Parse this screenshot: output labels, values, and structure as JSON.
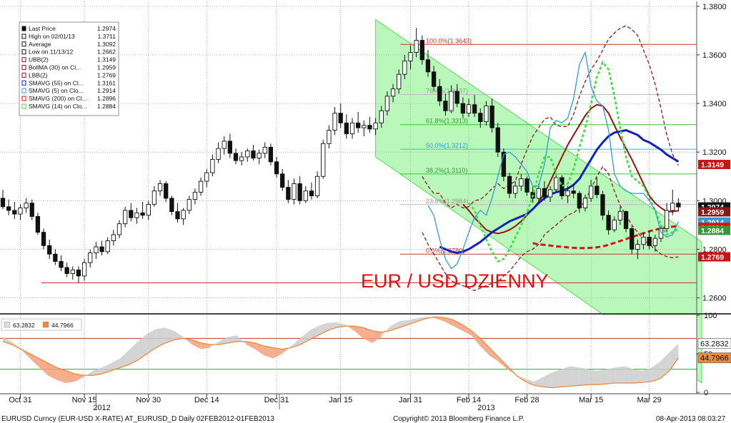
{
  "chart_data": {
    "type": "candlestick",
    "title": "EUR / USD DZIENNY",
    "colors": {
      "bull": "#ffffff",
      "bear": "#111111",
      "sma5": "#3399dd",
      "sma14": "#44dd44",
      "sma55": "#1122bb",
      "sma200": "#dd1111",
      "bb_band": "#8a1a1a",
      "boll_ma": "#991111",
      "channel": "#66ee66",
      "rsi_fill": "#f3a07a",
      "rsi_line": "#f08a3a",
      "overbought_fill": "#cccccc"
    },
    "price_axis": {
      "ylim": [
        1.254,
        1.382
      ],
      "ticks": [
        "1.3800",
        "1.3600",
        "1.3400",
        "1.3200",
        "1.3000",
        "1.2800",
        "1.2600"
      ],
      "side": "right"
    },
    "x_axis": {
      "tick_labels": [
        "Oct 31",
        "Nov 15",
        "Nov 30",
        "Dec 14",
        "Dec 31",
        "Jan 15",
        "Jan 31",
        "Feb 14",
        "Feb 28",
        "Mar 15",
        "Mar 29"
      ],
      "tick_index": [
        3,
        14,
        25,
        35,
        47,
        58,
        70,
        80,
        90,
        101,
        111
      ],
      "year_labels": [
        "2012",
        "2013"
      ],
      "year_index": [
        17,
        83
      ]
    },
    "legend": {
      "placement": "top-left",
      "items": [
        {
          "label": "Last Price",
          "value": "1.2974"
        },
        {
          "label": "High on 02/01/13",
          "value": "1.3711"
        },
        {
          "label": "Average",
          "value": "1.3092"
        },
        {
          "label": "Low on 11/13/12",
          "value": "1.2662"
        },
        {
          "label": "UBB(2)",
          "value": "1.3149"
        },
        {
          "label": "BollMA (30) on Cl...",
          "value": "1.2959"
        },
        {
          "label": "LBB(2)",
          "value": "1.2769"
        },
        {
          "label": "SMAVG (55) on Cl...",
          "value": "1.3161"
        },
        {
          "label": "SMAVG (5) on Clo...",
          "value": "1.2914"
        },
        {
          "label": "SMAVG (200) on Cl...",
          "value": "1.2896"
        },
        {
          "label": "SMAVG (14) on Clo...",
          "value": "1.2884"
        }
      ]
    },
    "horizontal_lines": [
      {
        "y": 1.3643,
        "color": "#cc3333"
      },
      {
        "y": 1.3437,
        "color": "#bbbbbb"
      },
      {
        "y": 1.3313,
        "color": "#44bb44"
      },
      {
        "y": 1.3212,
        "color": "#33bbee"
      },
      {
        "y": 1.311,
        "color": "#44bb44"
      },
      {
        "y": 1.2984,
        "color": "#bbbbbb"
      },
      {
        "y": 1.278,
        "color": "#cc3333"
      },
      {
        "y": 1.2662,
        "color": "#cc3333"
      }
    ],
    "fib_labels": [
      {
        "text": "100.0%(1.3643)",
        "y": 1.3643,
        "color": "#cc3333"
      },
      {
        "text": "76.4%(1.3437)",
        "y": 1.3437,
        "color": "#999999"
      },
      {
        "text": "61.8%(1.3313)",
        "y": 1.3313,
        "color": "#339933"
      },
      {
        "text": "50.0%(1.3212)",
        "y": 1.3212,
        "color": "#3399dd"
      },
      {
        "text": "38.2%(1.3110)",
        "y": 1.311,
        "color": "#339933"
      },
      {
        "text": "23.6%(1.2984)",
        "y": 1.2984,
        "color": "#999999"
      },
      {
        "text": "0.0%(1.2780)",
        "y": 1.278,
        "color": "#cc3333"
      }
    ],
    "price_tags": [
      {
        "text": "1.2974",
        "y": 1.2974,
        "bg": "#111111"
      },
      {
        "text": "1.2959",
        "y": 1.2954,
        "bg": "#8a1a1a"
      },
      {
        "text": "1.2914",
        "y": 1.2912,
        "bg": "#3399dd"
      },
      {
        "text": "1.2896",
        "y": 1.289,
        "bg": "#dd1111"
      },
      {
        "text": "1.2884",
        "y": 1.2878,
        "bg": "#339933"
      },
      {
        "text": "1.3149",
        "y": 1.3149,
        "bg": "#cc1111"
      },
      {
        "text": "1.2769",
        "y": 1.2769,
        "bg": "#cc1111"
      }
    ],
    "channel": {
      "start": {
        "index": 64,
        "upper": 1.3745,
        "lower": 1.318
      },
      "end": {
        "index": 120,
        "upper": 1.283,
        "lower": 1.225
      }
    },
    "candles": [
      [
        1.301,
        1.3045,
        1.2965,
        1.2975
      ],
      [
        1.2975,
        1.3005,
        1.294,
        1.296
      ],
      [
        1.296,
        1.2995,
        1.2925,
        1.2945
      ],
      [
        1.2945,
        1.2985,
        1.292,
        1.297
      ],
      [
        1.297,
        1.301,
        1.295,
        1.299
      ],
      [
        1.299,
        1.3005,
        1.292,
        1.2935
      ],
      [
        1.2935,
        1.295,
        1.286,
        1.287
      ],
      [
        1.287,
        1.2885,
        1.28,
        1.2815
      ],
      [
        1.2815,
        1.284,
        1.276,
        1.278
      ],
      [
        1.278,
        1.28,
        1.2735,
        1.275
      ],
      [
        1.275,
        1.2775,
        1.271,
        1.2725
      ],
      [
        1.2725,
        1.2745,
        1.2685,
        1.27
      ],
      [
        1.27,
        1.273,
        1.2675,
        1.2715
      ],
      [
        1.2715,
        1.273,
        1.2662,
        1.269
      ],
      [
        1.269,
        1.276,
        1.267,
        1.2745
      ],
      [
        1.2745,
        1.28,
        1.2725,
        1.2785
      ],
      [
        1.2785,
        1.283,
        1.276,
        1.281
      ],
      [
        1.281,
        1.2835,
        1.2775,
        1.279
      ],
      [
        1.279,
        1.285,
        1.278,
        1.2835
      ],
      [
        1.2835,
        1.288,
        1.2815,
        1.286
      ],
      [
        1.286,
        1.292,
        1.2845,
        1.2905
      ],
      [
        1.2905,
        1.2975,
        1.289,
        1.296
      ],
      [
        1.296,
        1.299,
        1.2915,
        1.293
      ],
      [
        1.293,
        1.297,
        1.2905,
        1.295
      ],
      [
        1.295,
        1.2995,
        1.2925,
        1.294
      ],
      [
        1.294,
        1.3,
        1.292,
        1.2985
      ],
      [
        1.2985,
        1.306,
        1.2975,
        1.304
      ],
      [
        1.304,
        1.3085,
        1.302,
        1.307
      ],
      [
        1.307,
        1.308,
        1.2995,
        1.301
      ],
      [
        1.301,
        1.302,
        1.294,
        1.2955
      ],
      [
        1.2955,
        1.299,
        1.291,
        1.2925
      ],
      [
        1.2925,
        1.297,
        1.29,
        1.296
      ],
      [
        1.296,
        1.302,
        1.2945,
        1.3005
      ],
      [
        1.3005,
        1.305,
        1.2985,
        1.3035
      ],
      [
        1.3035,
        1.3095,
        1.302,
        1.308
      ],
      [
        1.308,
        1.313,
        1.3055,
        1.3115
      ],
      [
        1.3115,
        1.319,
        1.31,
        1.317
      ],
      [
        1.317,
        1.324,
        1.3155,
        1.3215
      ],
      [
        1.3215,
        1.3265,
        1.319,
        1.3245
      ],
      [
        1.3245,
        1.3275,
        1.3175,
        1.3195
      ],
      [
        1.3195,
        1.3215,
        1.315,
        1.3165
      ],
      [
        1.3165,
        1.32,
        1.3145,
        1.318
      ],
      [
        1.318,
        1.3215,
        1.316,
        1.3205
      ],
      [
        1.3205,
        1.323,
        1.3165,
        1.3175
      ],
      [
        1.3175,
        1.321,
        1.315,
        1.3195
      ],
      [
        1.3195,
        1.324,
        1.3175,
        1.322
      ],
      [
        1.322,
        1.3235,
        1.3145,
        1.316
      ],
      [
        1.316,
        1.318,
        1.3095,
        1.311
      ],
      [
        1.311,
        1.313,
        1.304,
        1.3055
      ],
      [
        1.3055,
        1.3085,
        1.299,
        1.3005
      ],
      [
        1.3005,
        1.309,
        1.2985,
        1.307
      ],
      [
        1.307,
        1.31,
        1.2985,
        1.3
      ],
      [
        1.3,
        1.306,
        1.299,
        1.304
      ],
      [
        1.304,
        1.3075,
        1.3005,
        1.302
      ],
      [
        1.302,
        1.312,
        1.301,
        1.31
      ],
      [
        1.31,
        1.325,
        1.309,
        1.3235
      ],
      [
        1.3235,
        1.331,
        1.3215,
        1.329
      ],
      [
        1.329,
        1.3385,
        1.327,
        1.336
      ],
      [
        1.336,
        1.34,
        1.33,
        1.332
      ],
      [
        1.332,
        1.3355,
        1.3255,
        1.3275
      ],
      [
        1.3275,
        1.334,
        1.3255,
        1.332
      ],
      [
        1.332,
        1.3365,
        1.328,
        1.33
      ],
      [
        1.33,
        1.333,
        1.3265,
        1.331
      ],
      [
        1.331,
        1.3345,
        1.328,
        1.3295
      ],
      [
        1.3295,
        1.334,
        1.327,
        1.332
      ],
      [
        1.332,
        1.339,
        1.33,
        1.337
      ],
      [
        1.337,
        1.345,
        1.335,
        1.343
      ],
      [
        1.343,
        1.348,
        1.3405,
        1.346
      ],
      [
        1.346,
        1.354,
        1.344,
        1.352
      ],
      [
        1.352,
        1.36,
        1.35,
        1.3575
      ],
      [
        1.3575,
        1.364,
        1.354,
        1.361
      ],
      [
        1.361,
        1.3711,
        1.359,
        1.366
      ],
      [
        1.366,
        1.368,
        1.356,
        1.358
      ],
      [
        1.358,
        1.362,
        1.351,
        1.353
      ],
      [
        1.353,
        1.3555,
        1.345,
        1.347
      ],
      [
        1.347,
        1.35,
        1.339,
        1.341
      ],
      [
        1.341,
        1.344,
        1.335,
        1.337
      ],
      [
        1.337,
        1.3475,
        1.336,
        1.345
      ],
      [
        1.345,
        1.348,
        1.3385,
        1.34
      ],
      [
        1.34,
        1.3425,
        1.334,
        1.336
      ],
      [
        1.336,
        1.342,
        1.3345,
        1.3395
      ],
      [
        1.3395,
        1.3435,
        1.3345,
        1.336
      ],
      [
        1.336,
        1.338,
        1.33,
        1.3325
      ],
      [
        1.3325,
        1.341,
        1.331,
        1.339
      ],
      [
        1.339,
        1.342,
        1.328,
        1.33
      ],
      [
        1.33,
        1.332,
        1.318,
        1.32
      ],
      [
        1.32,
        1.3215,
        1.308,
        1.31
      ],
      [
        1.31,
        1.3115,
        1.301,
        1.303
      ],
      [
        1.303,
        1.308,
        1.301,
        1.306
      ],
      [
        1.306,
        1.311,
        1.304,
        1.309
      ],
      [
        1.309,
        1.31,
        1.302,
        1.3035
      ],
      [
        1.3035,
        1.306,
        1.299,
        1.301
      ],
      [
        1.301,
        1.307,
        1.3,
        1.305
      ],
      [
        1.305,
        1.308,
        1.3,
        1.3015
      ],
      [
        1.3015,
        1.306,
        1.2995,
        1.3045
      ],
      [
        1.3045,
        1.3115,
        1.3035,
        1.3095
      ],
      [
        1.3095,
        1.3105,
        1.3005,
        1.302
      ],
      [
        1.302,
        1.306,
        1.299,
        1.304
      ],
      [
        1.304,
        1.307,
        1.301,
        1.303
      ],
      [
        1.303,
        1.304,
        1.295,
        1.297
      ],
      [
        1.297,
        1.3025,
        1.2955,
        1.301
      ],
      [
        1.301,
        1.3085,
        1.2995,
        1.306
      ],
      [
        1.306,
        1.3095,
        1.301,
        1.3025
      ],
      [
        1.3025,
        1.304,
        1.292,
        1.294
      ],
      [
        1.294,
        1.296,
        1.286,
        1.288
      ],
      [
        1.288,
        1.2935,
        1.287,
        1.292
      ],
      [
        1.292,
        1.2975,
        1.29,
        1.2955
      ],
      [
        1.2955,
        1.296,
        1.287,
        1.2885
      ],
      [
        1.2885,
        1.2895,
        1.278,
        1.28
      ],
      [
        1.28,
        1.284,
        1.276,
        1.282
      ],
      [
        1.282,
        1.287,
        1.28,
        1.285
      ],
      [
        1.285,
        1.2875,
        1.28,
        1.2815
      ],
      [
        1.2815,
        1.286,
        1.279,
        1.2845
      ],
      [
        1.2845,
        1.29,
        1.283,
        1.2885
      ],
      [
        1.2885,
        1.299,
        1.287,
        1.296
      ],
      [
        1.296,
        1.3045,
        1.294,
        1.299
      ],
      [
        1.299,
        1.301,
        1.2955,
        1.2974
      ]
    ],
    "bb_upper": [
      1.31,
      1.306,
      1.303,
      1.303,
      1.299,
      1.297,
      1.2985,
      1.297,
      1.2975,
      1.3,
      1.3005,
      1.3025,
      1.305,
      1.307,
      1.305,
      1.3065,
      1.308,
      1.315,
      1.321,
      1.3265,
      1.33,
      1.3335,
      1.3345,
      1.331,
      1.3305,
      1.3305,
      1.3355,
      1.343,
      1.349,
      1.354,
      1.3575,
      1.362,
      1.3665,
      1.369,
      1.371,
      1.372,
      1.3705,
      1.368,
      1.362,
      1.356,
      1.348,
      1.338,
      1.327,
      1.319,
      1.3145
    ],
    "bb_lower": [
      1.287,
      1.282,
      1.278,
      1.274,
      1.27,
      1.267,
      1.266,
      1.265,
      1.264,
      1.263,
      1.264,
      1.265,
      1.266,
      1.2665,
      1.269,
      1.271,
      1.274,
      1.277,
      1.279,
      1.28,
      1.282,
      1.286,
      1.288,
      1.29,
      1.292,
      1.294,
      1.295,
      1.297,
      1.3,
      1.305,
      1.31,
      1.314,
      1.311,
      1.304,
      1.298,
      1.294,
      1.29,
      1.287,
      1.284,
      1.282,
      1.28,
      1.278,
      1.277,
      1.2765,
      1.2769
    ],
    "boll_ma": [
      1.2985,
      1.296,
      1.293,
      1.2905,
      1.288,
      1.287,
      1.2865,
      1.287,
      1.288,
      1.2895,
      1.2915,
      1.294,
      1.2965,
      1.2995,
      1.303,
      1.308,
      1.313,
      1.318,
      1.323,
      1.327,
      1.331,
      1.335,
      1.338,
      1.3395,
      1.339,
      1.336,
      1.331,
      1.326,
      1.3215,
      1.317,
      1.312,
      1.307,
      1.302,
      1.299,
      1.297,
      1.2955,
      1.2955,
      1.2959
    ],
    "sma55": [
      1.281,
      1.28,
      1.279,
      1.2785,
      1.279,
      1.28,
      1.2815,
      1.283,
      1.285,
      1.287,
      1.2885,
      1.29,
      1.2915,
      1.2925,
      1.2935,
      1.2945,
      1.2965,
      1.299,
      1.301,
      1.3025,
      1.3035,
      1.304,
      1.305,
      1.3065,
      1.309,
      1.313,
      1.317,
      1.321,
      1.324,
      1.3265,
      1.328,
      1.3285,
      1.329,
      1.328,
      1.327,
      1.325,
      1.324,
      1.3225,
      1.321,
      1.319,
      1.3175,
      1.3161
    ],
    "sma200": [
      1.2825,
      1.282,
      1.2818,
      1.2815,
      1.2812,
      1.281,
      1.2808,
      1.2806,
      1.2805,
      1.2805,
      1.2806,
      1.2808,
      1.2812,
      1.2818,
      1.2826,
      1.2834,
      1.2842,
      1.285,
      1.2858,
      1.2866,
      1.2874,
      1.288,
      1.2886,
      1.289,
      1.2893,
      1.2896
    ],
    "sma14": [
      1.299,
      1.296,
      1.29,
      1.284,
      1.279,
      1.275,
      1.276,
      1.28,
      1.285,
      1.29,
      1.295,
      1.302,
      1.311,
      1.318,
      1.318,
      1.311,
      1.306,
      1.307,
      1.313,
      1.322,
      1.33,
      1.34,
      1.351,
      1.357,
      1.354,
      1.343,
      1.33,
      1.318,
      1.31,
      1.308,
      1.306,
      1.301,
      1.296,
      1.29,
      1.286,
      1.287,
      1.2884
    ],
    "sma5": [
      1.298,
      1.294,
      1.284,
      1.276,
      1.272,
      1.274,
      1.28,
      1.287,
      1.293,
      1.296,
      1.294,
      1.301,
      1.31,
      1.319,
      1.32,
      1.318,
      1.315,
      1.312,
      1.306,
      1.306,
      1.315,
      1.33,
      1.333,
      1.332,
      1.334,
      1.342,
      1.356,
      1.361,
      1.347,
      1.341,
      1.339,
      1.329,
      1.311,
      1.306,
      1.304,
      1.303,
      1.303,
      1.303,
      1.3,
      1.296,
      1.287,
      1.285,
      1.286,
      1.2914
    ],
    "rsi_panel": {
      "ylim": [
        0,
        100
      ],
      "ticks": [
        "100",
        "50",
        "0"
      ],
      "levels": [
        70,
        30
      ],
      "legend": [
        {
          "value": "63.2832",
          "color": "#dddddd"
        },
        {
          "value": "44.7966",
          "color": "#f08a3a"
        }
      ],
      "tags": [
        {
          "text": "63.2832",
          "y": 63.28,
          "bg": "#ffffff",
          "fg": "#111111"
        },
        {
          "text": "44.7966",
          "y": 44.8,
          "bg": "#f08a3a",
          "fg": "#111111"
        }
      ],
      "fast": [
        72,
        66,
        56,
        44,
        33,
        22,
        16,
        12,
        14,
        20,
        28,
        32,
        38,
        44,
        55,
        66,
        76,
        82,
        84,
        80,
        72,
        62,
        56,
        58,
        66,
        72,
        74,
        62,
        56,
        48,
        44,
        50,
        60,
        70,
        80,
        86,
        90,
        91,
        88,
        80,
        70,
        64,
        72,
        86,
        92,
        94,
        96,
        98,
        96,
        92,
        86,
        80,
        74,
        60,
        48,
        40,
        30,
        22,
        18,
        14,
        20,
        26,
        30,
        34,
        32,
        30,
        28,
        30,
        32,
        34,
        30,
        28,
        32,
        40,
        52,
        63.28
      ],
      "slow": [
        66,
        62,
        56,
        50,
        44,
        38,
        32,
        28,
        24,
        22,
        22,
        24,
        28,
        32,
        36,
        42,
        50,
        58,
        64,
        68,
        70,
        68,
        64,
        62,
        62,
        64,
        66,
        66,
        64,
        60,
        58,
        56,
        58,
        62,
        68,
        74,
        80,
        84,
        86,
        86,
        84,
        80,
        78,
        80,
        84,
        88,
        92,
        96,
        98,
        97,
        94,
        88,
        80,
        70,
        58,
        46,
        34,
        22,
        14,
        9,
        7,
        6,
        7,
        8,
        9,
        10,
        10,
        11,
        12,
        12,
        12,
        13,
        14,
        18,
        28,
        44.8
      ]
    },
    "footer": {
      "left": "EURUSD Curncy (EUR-USD X-RATE) AT_EURUSD_D  Daily 02FEB2012-01FEB2013",
      "center": "Copyright© 2013 Bloomberg Finance L.P.",
      "right": "08-Apr-2013 08:03:27"
    }
  }
}
